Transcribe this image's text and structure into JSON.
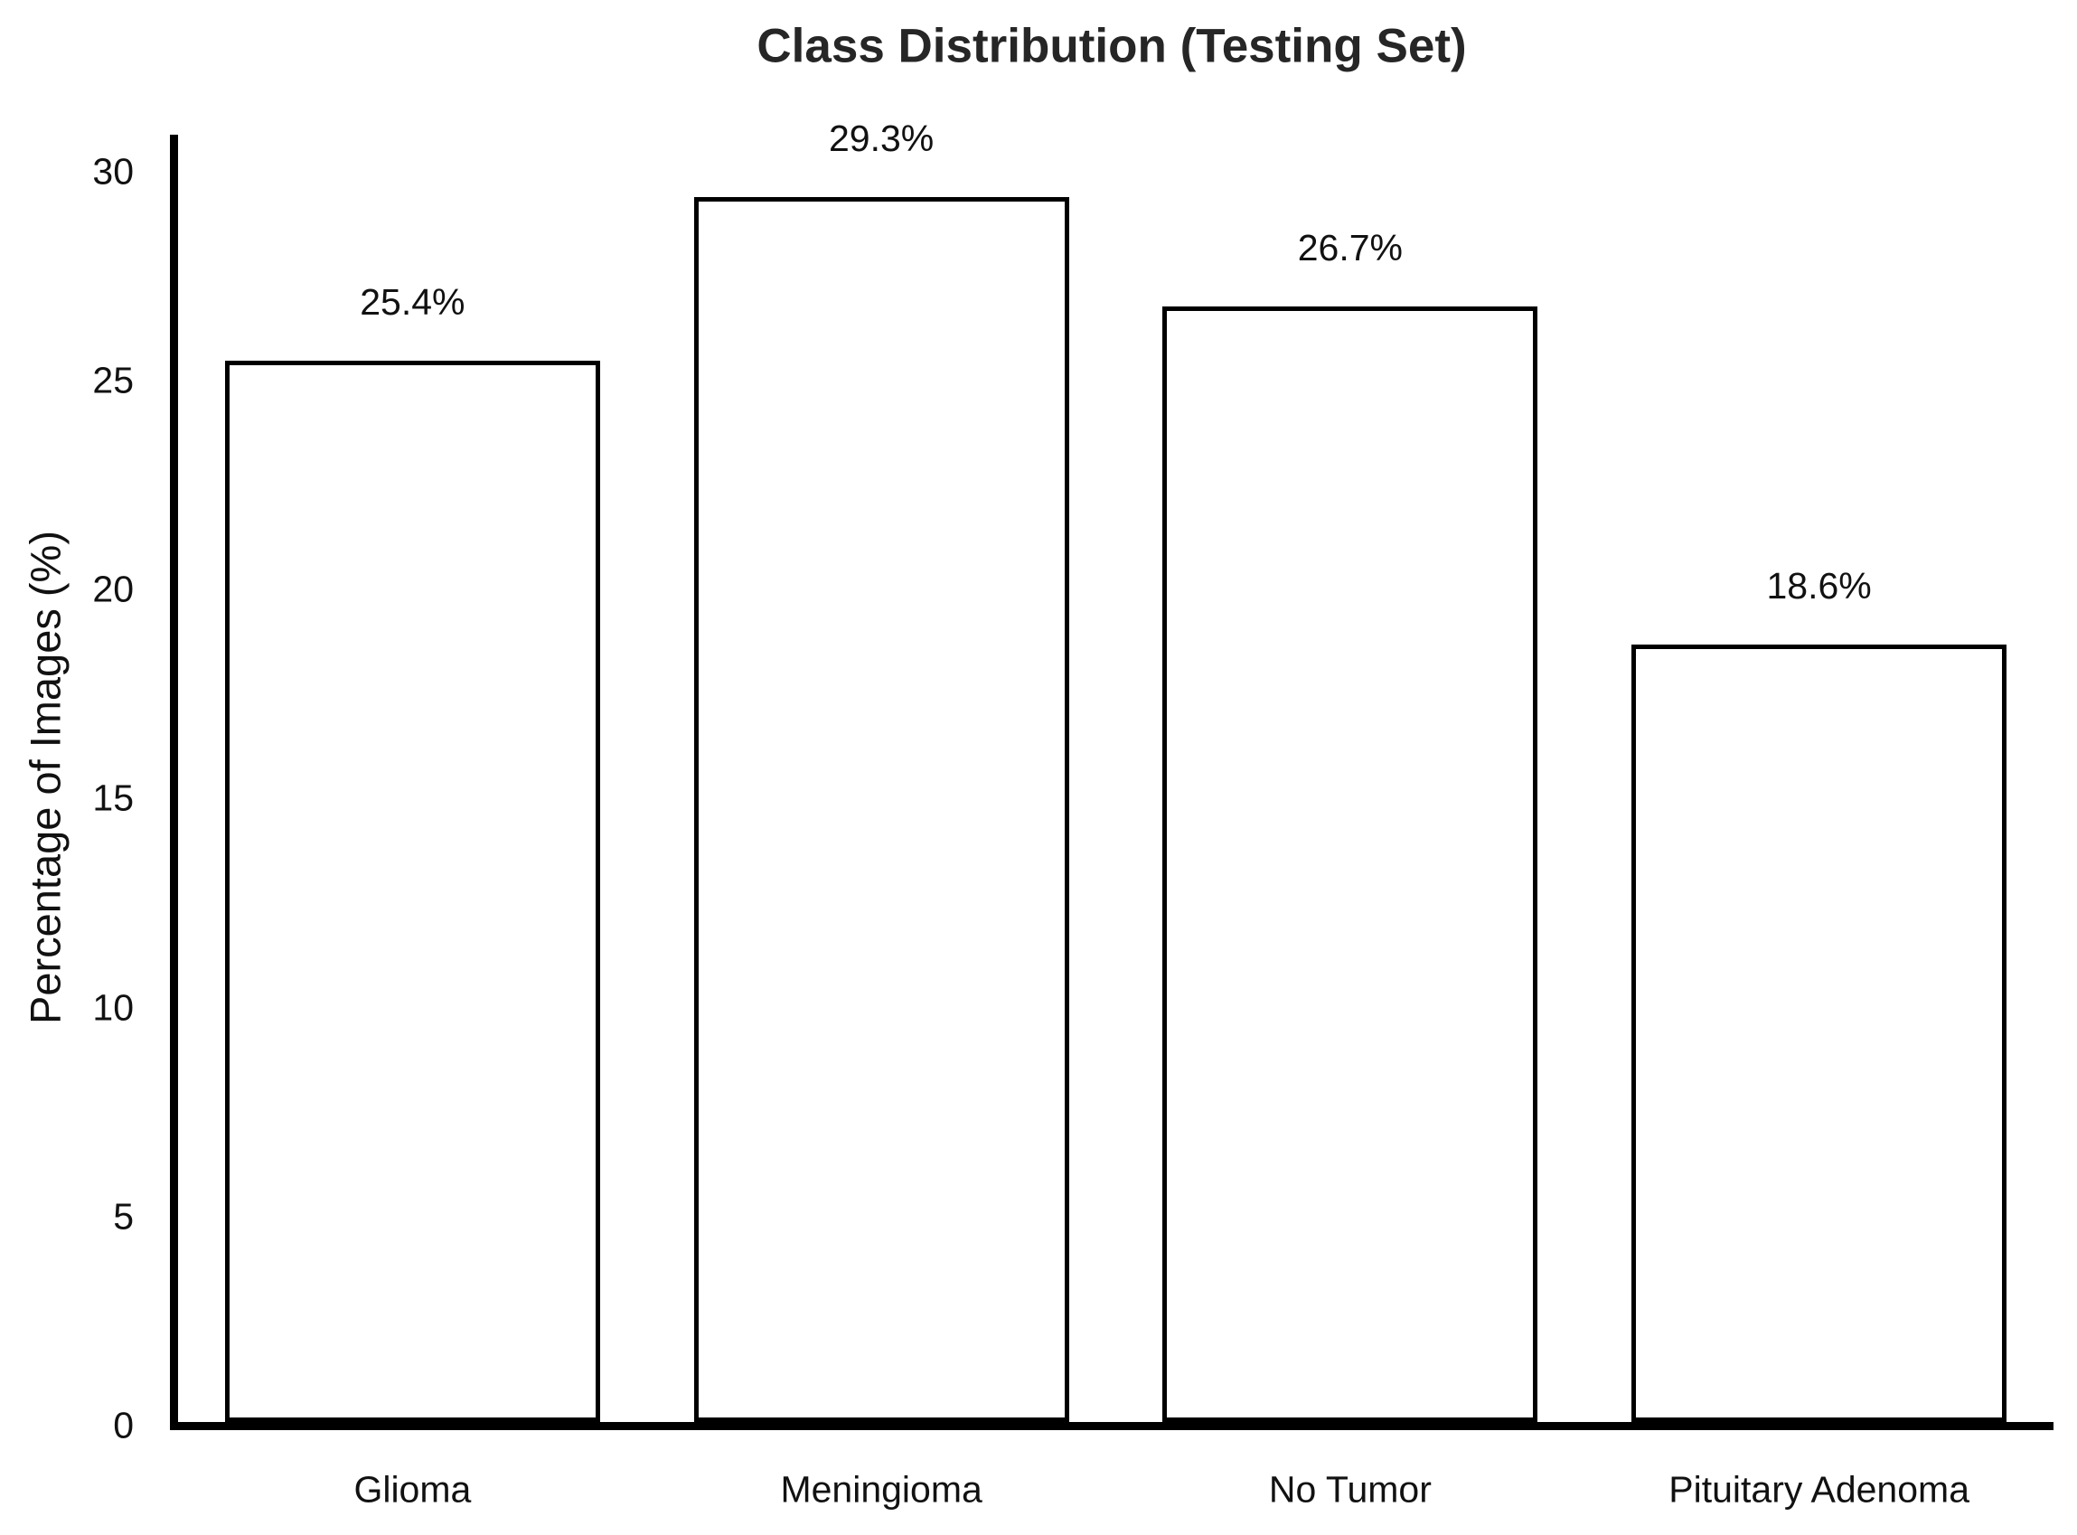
{
  "chart_data": {
    "type": "bar",
    "title": "Class Distribution (Testing Set)",
    "xlabel": "",
    "ylabel": "Percentage of Images (%)",
    "categories": [
      "Glioma",
      "Meningioma",
      "No Tumor",
      "Pituitary Adenoma"
    ],
    "values": [
      25.4,
      29.3,
      26.7,
      18.6
    ],
    "bar_labels": [
      "25.4%",
      "29.3%",
      "26.7%",
      "18.6%"
    ],
    "yticks": [
      0,
      5,
      10,
      15,
      20,
      25,
      30
    ],
    "ytick_labels": [
      "0",
      "5",
      "10",
      "15",
      "20",
      "25",
      "30"
    ],
    "ylim": [
      0,
      30.8
    ],
    "grid": false,
    "legend": null,
    "bar_fill": "#ffffff",
    "bar_edge": "#000000",
    "axis_color": "#000000",
    "text_color": "#111111"
  }
}
